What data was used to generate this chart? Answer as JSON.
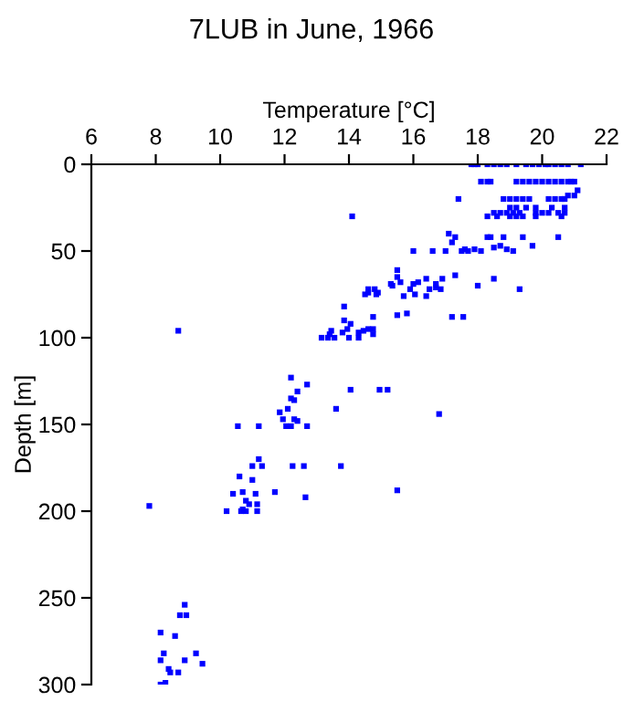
{
  "chart_data": {
    "type": "scatter",
    "title": "7LUB in June, 1966",
    "xlabel": "Temperature [°C]",
    "ylabel": "Depth [m]",
    "xlim": [
      6,
      22
    ],
    "xticks": [
      6,
      8,
      10,
      12,
      14,
      16,
      18,
      20,
      22
    ],
    "ylim": [
      300,
      0
    ],
    "yticks": [
      0,
      50,
      100,
      150,
      200,
      250,
      300
    ],
    "marker": "square",
    "grid": false,
    "legend": false,
    "series": [
      {
        "color": "#0000ff",
        "x": [
          17.8,
          17.9,
          18.0,
          18.3,
          18.5,
          18.7,
          18.9,
          19.2,
          19.5,
          19.7,
          19.9,
          20.1,
          20.2,
          20.4,
          20.6,
          20.8,
          21.2,
          18.1,
          18.3,
          18.4,
          19.2,
          19.4,
          19.6,
          19.8,
          20.0,
          20.2,
          20.4,
          20.6,
          20.8,
          20.9,
          21.0,
          21.1,
          20.8,
          21.0,
          17.4,
          18.8,
          19.0,
          19.2,
          19.4,
          19.6,
          20.2,
          20.4,
          20.6,
          20.7,
          19.0,
          19.2,
          19.5,
          19.8,
          20.3,
          20.7,
          18.5,
          18.7,
          18.9,
          19.1,
          19.3,
          19.8,
          20.0,
          20.2,
          20.5,
          20.7,
          14.1,
          18.3,
          18.6,
          19.0,
          19.2,
          19.4,
          19.8,
          20.6,
          17.1,
          17.3,
          18.3,
          18.4,
          18.8,
          19.4,
          20.5,
          17.2,
          18.7,
          19.7,
          18.5,
          17.6,
          17.9,
          18.9,
          16.0,
          16.6,
          17.0,
          17.5,
          17.7,
          18.1,
          19.1,
          15.5,
          15.5,
          15.6,
          15.35,
          16.15,
          16.4,
          16.9,
          17.3,
          18.5,
          18.0,
          15.9,
          16.5,
          16.7,
          16.85,
          15.3,
          16.0,
          16.7,
          14.6,
          14.8,
          19.3,
          15.7,
          16.05,
          16.4,
          14.6,
          14.85,
          14.9,
          14.5,
          13.85,
          14.75,
          15.5,
          15.8,
          17.2,
          17.55,
          8.7,
          13.85,
          14.05,
          13.95,
          13.45,
          13.8,
          14.45,
          14.6,
          14.75,
          14.3,
          14.75,
          13.15,
          13.35,
          13.55,
          14.0,
          14.3,
          13.4,
          12.2,
          12.7,
          12.4,
          12.2,
          12.3,
          14.05,
          14.95,
          15.2,
          12.1,
          13.6,
          11.85,
          16.8,
          11.95,
          12.3,
          12.4,
          12.05,
          12.2,
          12.7,
          10.55,
          11.2,
          11.2,
          11.0,
          11.3,
          12.25,
          12.6,
          13.75,
          10.6,
          11.0,
          10.4,
          10.7,
          11.1,
          11.7,
          12.65,
          10.8,
          10.9,
          11.15,
          7.8,
          10.2,
          10.65,
          10.8,
          11.15,
          10.7,
          15.5,
          8.9,
          8.75,
          8.95,
          8.15,
          8.6,
          8.25,
          9.25,
          8.15,
          8.9,
          9.45,
          8.4,
          8.45,
          8.7,
          8.15,
          8.3
        ],
        "values": [
          0,
          0,
          0,
          0,
          0,
          0,
          0,
          0,
          0,
          0,
          0,
          0,
          0,
          0,
          0,
          0,
          0,
          10,
          10,
          10,
          10,
          10,
          10,
          10,
          10,
          10,
          10,
          10,
          10,
          10,
          10,
          15,
          18,
          18,
          20,
          20,
          20,
          20,
          20,
          20,
          20,
          20,
          20,
          20,
          25,
          25,
          25,
          25,
          25,
          25,
          28,
          28,
          28,
          28,
          28,
          28,
          28,
          28,
          28,
          28,
          30,
          30,
          30,
          30,
          30,
          30,
          30,
          30,
          40,
          42,
          42,
          42,
          42,
          42,
          42,
          45,
          47,
          47,
          48,
          49,
          49,
          49,
          50,
          50,
          50,
          50,
          50,
          50,
          50,
          61,
          65,
          68,
          70,
          68,
          66,
          66,
          64,
          66,
          70,
          72,
          72,
          71,
          72,
          69,
          69,
          69,
          72,
          72,
          72,
          76,
          75,
          76,
          74,
          75,
          74,
          75,
          82,
          88,
          87,
          86,
          88,
          88,
          96,
          90,
          92,
          95,
          96,
          97,
          96,
          95,
          95,
          97,
          98,
          100,
          100,
          100,
          100,
          100,
          98,
          123,
          127,
          131,
          135,
          136,
          130,
          130,
          130,
          141,
          141,
          143,
          144,
          147,
          147,
          148,
          151,
          151,
          151,
          151,
          151,
          170,
          174,
          174,
          174,
          174,
          174,
          180,
          182,
          190,
          189,
          190,
          189,
          192,
          194,
          196,
          196,
          197,
          200,
          200,
          200,
          200,
          199,
          188,
          254,
          260,
          260,
          270,
          272,
          282,
          282,
          286,
          286,
          288,
          291,
          293,
          293,
          300,
          299
        ]
      }
    ]
  }
}
